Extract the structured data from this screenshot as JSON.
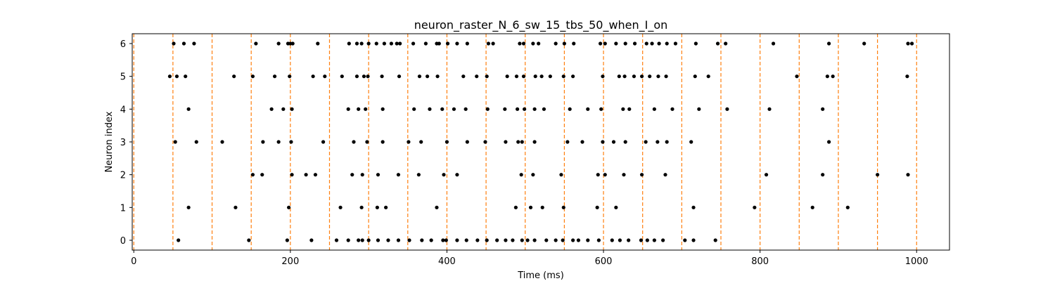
{
  "chart_data": {
    "type": "scatter",
    "title": "neuron_raster_N_6_sw_15_tbs_50_when_I_on",
    "xlabel": "Time (ms)",
    "ylabel": "Neuron index",
    "xlim": [
      -2,
      1042
    ],
    "ylim": [
      -0.3,
      6.3
    ],
    "xticks": [
      0,
      200,
      400,
      600,
      800,
      1000
    ],
    "yticks": [
      0,
      1,
      2,
      3,
      4,
      5,
      6
    ],
    "marker_color": "#000000",
    "stim_line_color": "#ff7f0e",
    "stim_lines": [
      0,
      50,
      100,
      150,
      200,
      250,
      300,
      350,
      400,
      450,
      500,
      550,
      600,
      650,
      700,
      750,
      800,
      850,
      900,
      950,
      1000
    ],
    "series": [
      {
        "neuron": 0,
        "x": [
          57,
          147,
          196,
          227,
          259,
          274,
          287,
          292,
          300,
          312,
          325,
          338,
          352,
          368,
          380,
          395,
          399,
          413,
          425,
          439,
          451,
          464,
          475,
          484,
          496,
          503,
          512,
          527,
          539,
          548,
          561,
          568,
          580,
          594,
          611,
          621,
          632,
          648,
          656,
          665,
          676,
          704,
          715,
          743
        ]
      },
      {
        "neuron": 1,
        "x": [
          70,
          130,
          198,
          264,
          291,
          311,
          322,
          387,
          488,
          507,
          522,
          549,
          592,
          616,
          715,
          793,
          867,
          912
        ]
      },
      {
        "neuron": 2,
        "x": [
          152,
          164,
          202,
          220,
          232,
          279,
          292,
          312,
          338,
          364,
          396,
          413,
          495,
          510,
          546,
          593,
          602,
          626,
          649,
          679,
          808,
          880,
          950,
          989
        ]
      },
      {
        "neuron": 3,
        "x": [
          53,
          80,
          113,
          165,
          185,
          201,
          242,
          281,
          298,
          318,
          351,
          367,
          400,
          426,
          449,
          475,
          491,
          496,
          512,
          554,
          573,
          599,
          613,
          628,
          654,
          669,
          681,
          712,
          888
        ]
      },
      {
        "neuron": 4,
        "x": [
          70,
          176,
          191,
          202,
          274,
          287,
          296,
          318,
          358,
          378,
          394,
          409,
          424,
          452,
          474,
          490,
          499,
          512,
          524,
          557,
          580,
          597,
          625,
          633,
          665,
          688,
          722,
          758,
          812,
          880
        ]
      },
      {
        "neuron": 5,
        "x": [
          46,
          55,
          66,
          128,
          152,
          180,
          199,
          229,
          244,
          266,
          285,
          294,
          299,
          317,
          339,
          365,
          375,
          388,
          421,
          438,
          451,
          477,
          489,
          498,
          513,
          521,
          532,
          549,
          561,
          599,
          620,
          627,
          639,
          649,
          659,
          670,
          680,
          717,
          734,
          847,
          886,
          893,
          988
        ]
      },
      {
        "neuron": 6,
        "x": [
          51,
          64,
          77,
          156,
          185,
          197,
          200,
          203,
          235,
          275,
          285,
          291,
          300,
          310,
          320,
          329,
          336,
          340,
          357,
          373,
          387,
          390,
          401,
          413,
          426,
          453,
          459,
          493,
          498,
          510,
          517,
          539,
          550,
          562,
          596,
          602,
          616,
          628,
          640,
          655,
          662,
          671,
          681,
          692,
          718,
          746,
          756,
          817,
          888,
          933,
          989,
          994
        ]
      }
    ]
  }
}
